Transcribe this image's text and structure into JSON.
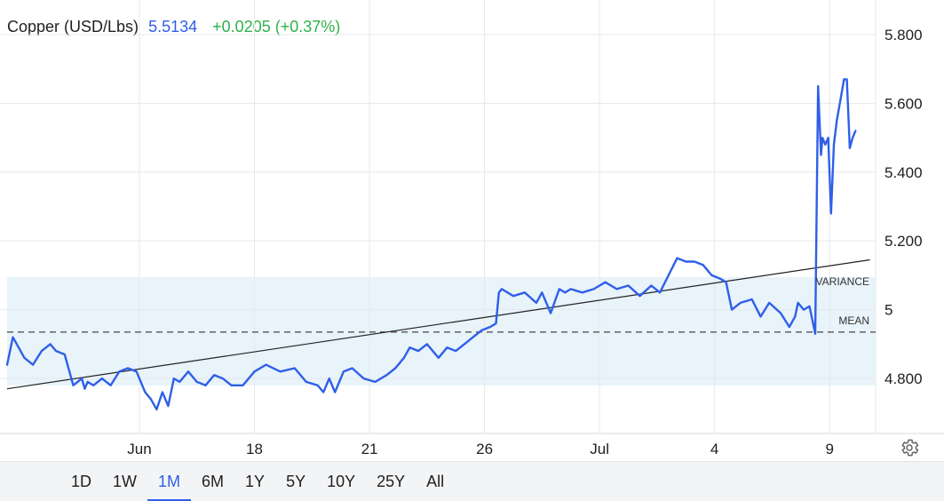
{
  "header": {
    "name": "Copper (USD/Lbs)",
    "price": "5.5134",
    "change": "+0.0205 (+0.37%)"
  },
  "ranges": {
    "items": [
      "1D",
      "1W",
      "1M",
      "6M",
      "1Y",
      "5Y",
      "10Y",
      "25Y",
      "All"
    ],
    "active": "1M"
  },
  "colors": {
    "line": "#2f5fe8",
    "band": "#e8f3fa",
    "positive": "#2fb24a",
    "grid": "#e6e8eb"
  },
  "icons": {
    "settings": "gear-icon"
  },
  "chart_data": {
    "type": "line",
    "title": "Copper (USD/Lbs)",
    "xlabel": "",
    "ylabel": "",
    "ylim": [
      4.64,
      5.88
    ],
    "xlim": [
      0,
      30.2
    ],
    "grid": true,
    "y_axis_position": "right",
    "y_ticks": [
      {
        "value": 4.8,
        "label": "4.800"
      },
      {
        "value": 5.0,
        "label": "5"
      },
      {
        "value": 5.2,
        "label": "5.200"
      },
      {
        "value": 5.4,
        "label": "5.400"
      },
      {
        "value": 5.6,
        "label": "5.600"
      },
      {
        "value": 5.8,
        "label": "5.800"
      }
    ],
    "x_ticks": [
      {
        "value": 4.6,
        "label": "Jun"
      },
      {
        "value": 8.6,
        "label": "18"
      },
      {
        "value": 12.6,
        "label": "21"
      },
      {
        "value": 16.6,
        "label": "26"
      },
      {
        "value": 20.6,
        "label": "Jul"
      },
      {
        "value": 24.6,
        "label": "4"
      },
      {
        "value": 28.6,
        "label": "9"
      }
    ],
    "series": [
      {
        "x": [
          0,
          0.2,
          0.4,
          0.6,
          0.9,
          1.2,
          1.5,
          1.7,
          2.0,
          2.3,
          2.6,
          2.7,
          2.8,
          3.0,
          3.3,
          3.6,
          3.9,
          4.2,
          4.5,
          4.8,
          5.0,
          5.2,
          5.4,
          5.6,
          5.8,
          6.0,
          6.3,
          6.6,
          6.9,
          7.2,
          7.5,
          7.8,
          8.2,
          8.6,
          9.0,
          9.5,
          10.0,
          10.4,
          10.8,
          11.0,
          11.2,
          11.4,
          11.7,
          12.0,
          12.4,
          12.8,
          13.2,
          13.5,
          13.8,
          14.0,
          14.3,
          14.6,
          15.0,
          15.3,
          15.6,
          15.9,
          16.2,
          16.5,
          16.8,
          17.0,
          17.1,
          17.2,
          17.6,
          18.0,
          18.4,
          18.6,
          18.9,
          19.2,
          19.4,
          19.6,
          20.0,
          20.4,
          20.8,
          21.2,
          21.6,
          22.0,
          22.4,
          22.7,
          23.0,
          23.3,
          23.6,
          23.9,
          24.2,
          24.5,
          24.8,
          25.0,
          25.2,
          25.5,
          25.9,
          26.2,
          26.5,
          26.9,
          27.2,
          27.4,
          27.5,
          27.7,
          27.9,
          28.1,
          28.2,
          28.3,
          28.35,
          28.45,
          28.55,
          28.65,
          28.75,
          28.85,
          29.0,
          29.1,
          29.2,
          29.3,
          29.4,
          29.5
        ],
        "y": [
          4.84,
          4.92,
          4.89,
          4.86,
          4.84,
          4.88,
          4.9,
          4.88,
          4.87,
          4.78,
          4.8,
          4.77,
          4.79,
          4.78,
          4.8,
          4.78,
          4.82,
          4.83,
          4.82,
          4.76,
          4.74,
          4.71,
          4.76,
          4.72,
          4.8,
          4.79,
          4.82,
          4.79,
          4.78,
          4.81,
          4.8,
          4.78,
          4.78,
          4.82,
          4.84,
          4.82,
          4.83,
          4.79,
          4.78,
          4.76,
          4.8,
          4.76,
          4.82,
          4.83,
          4.8,
          4.79,
          4.81,
          4.83,
          4.86,
          4.89,
          4.88,
          4.9,
          4.86,
          4.89,
          4.88,
          4.9,
          4.92,
          4.94,
          4.95,
          4.96,
          5.05,
          5.06,
          5.04,
          5.05,
          5.02,
          5.05,
          4.99,
          5.06,
          5.05,
          5.06,
          5.05,
          5.06,
          5.08,
          5.06,
          5.07,
          5.04,
          5.07,
          5.05,
          5.1,
          5.15,
          5.14,
          5.14,
          5.13,
          5.1,
          5.09,
          5.08,
          5.0,
          5.02,
          5.03,
          4.98,
          5.02,
          4.99,
          4.95,
          4.98,
          5.02,
          5.0,
          5.01,
          4.93,
          5.65,
          5.45,
          5.5,
          5.48,
          5.5,
          5.28,
          5.48,
          5.55,
          5.62,
          5.67,
          5.67,
          5.47,
          5.5,
          5.52
        ]
      }
    ],
    "trendline": {
      "x": [
        0,
        30.0
      ],
      "y": [
        4.77,
        5.145
      ]
    },
    "mean": {
      "label": "MEAN",
      "value": 4.935
    },
    "variance": {
      "label": "VARIANCE",
      "low": 4.78,
      "high": 5.095
    }
  }
}
